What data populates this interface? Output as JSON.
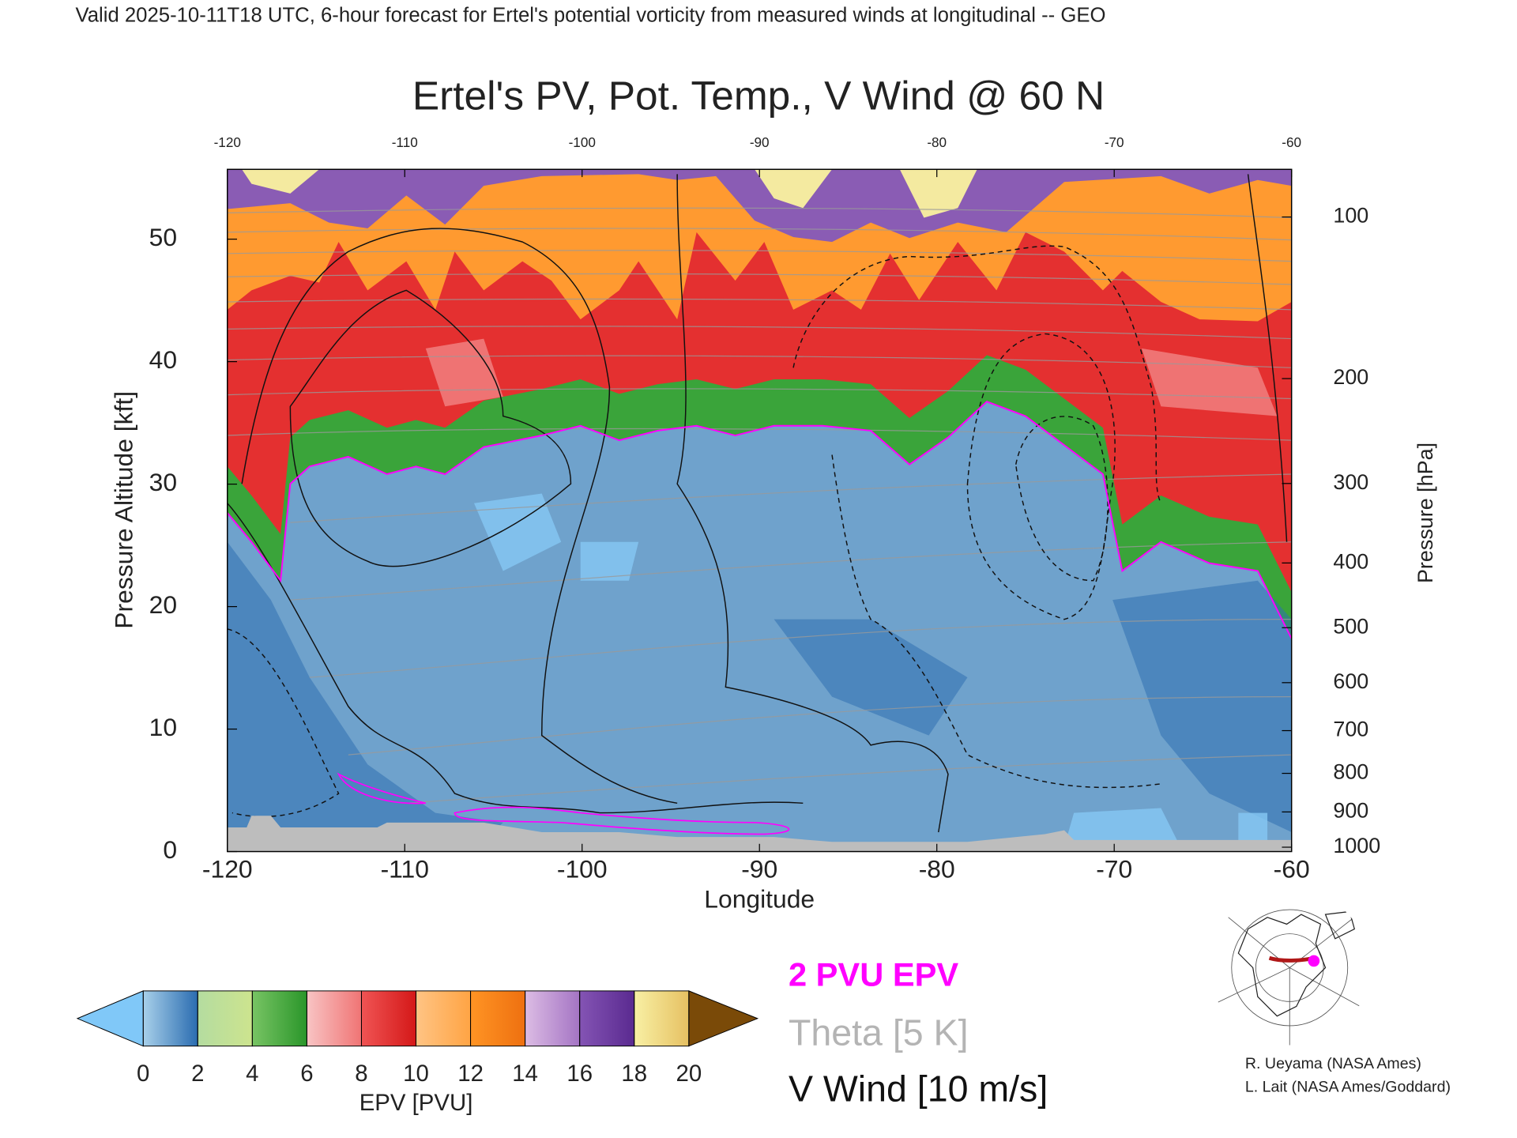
{
  "header": "Valid 2025-10-11T18 UTC, 6-hour forecast for Ertel's potential vorticity from measured winds at longitudinal -- GEO",
  "chart_data": {
    "type": "contour",
    "title": "Ertel's PV, Pot. Temp., V Wind @ 60 N",
    "x_label": "Longitude",
    "y_label": "Pressure Altitude [kft]",
    "y2_label": "Pressure [hPa]",
    "xlim": [
      -120,
      -60
    ],
    "xticks": [
      -120,
      -110,
      -100,
      -90,
      -80,
      -70,
      -60
    ],
    "ylim": [
      0,
      55.7
    ],
    "yticks": [
      0,
      10,
      20,
      30,
      40,
      50
    ],
    "y2lim": [
      1013,
      80
    ],
    "y2ticks": [
      100,
      200,
      300,
      400,
      500,
      600,
      700,
      800,
      900,
      1000
    ],
    "colorbar": {
      "label": "EPV [PVU]",
      "ticks": [
        0,
        2,
        4,
        6,
        8,
        10,
        12,
        14,
        16,
        18,
        20
      ],
      "under_color": "#80c8f8",
      "over_color": "#7a4a08",
      "colors": [
        [
          "#a8d0ea",
          "#2a6cb0"
        ],
        [
          "#b4dca0",
          "#cde48e"
        ],
        [
          "#78c464",
          "#2a962a"
        ],
        [
          "#f8c4c4",
          "#f07474"
        ],
        [
          "#f05454",
          "#d41818"
        ],
        [
          "#ffc484",
          "#ffa444"
        ],
        [
          "#ff9424",
          "#ee7010"
        ],
        [
          "#dcbce4",
          "#a474c4"
        ],
        [
          "#8454b4",
          "#5a2a90"
        ],
        [
          "#f8f0a4",
          "#e6c062"
        ]
      ]
    },
    "legend": [
      {
        "name": "2 PVU EPV",
        "color": "#ff00ff"
      },
      {
        "name": "Theta [5 K]",
        "color": "#b4b4b4"
      },
      {
        "name": "V Wind [10 m/s]",
        "color": "#111111"
      }
    ]
  },
  "credits": [
    "R. Ueyama (NASA Ames)",
    "L. Lait (NASA Ames/Goddard)"
  ]
}
